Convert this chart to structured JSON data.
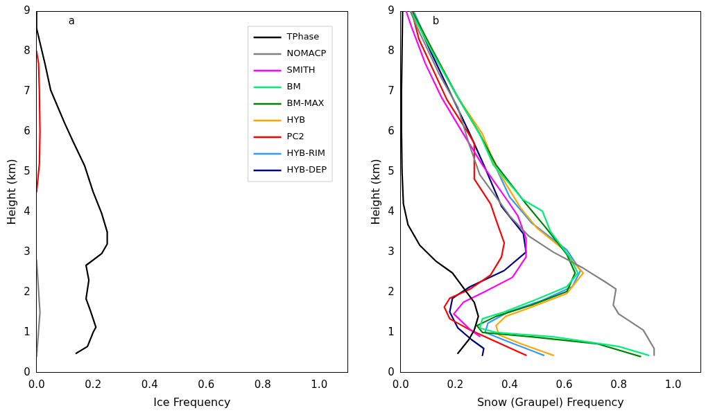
{
  "chart_data": [
    {
      "type": "line",
      "annotations": [
        "a"
      ],
      "xlabel": "Ice Frequency",
      "ylabel": "Height (km)",
      "xlim": [
        0,
        1.1
      ],
      "xticks": [
        {
          "value": 0,
          "label": "0.0"
        },
        {
          "value": 0.2,
          "label": "0.2"
        },
        {
          "value": 0.4,
          "label": "0.4"
        },
        {
          "value": 0.6,
          "label": "0.6"
        },
        {
          "value": 0.8,
          "label": "0.8"
        },
        {
          "value": 1,
          "label": "1.0"
        }
      ],
      "ylim": [
        0,
        9
      ],
      "yticks": [
        0,
        1,
        2,
        3,
        4,
        5,
        6,
        7,
        8,
        9
      ],
      "grid": false,
      "legend": "top right",
      "marker": "none",
      "line_style": "solid",
      "series": [
        {
          "name": "TPhase",
          "color": "#000000",
          "x": [
            0.14,
            0.18,
            0.2,
            0.21,
            0.19,
            0.175,
            0.185,
            0.175,
            0.23,
            0.25,
            0.25,
            0.23,
            0.2,
            0.17,
            0.13,
            0.1,
            0.05,
            0.03,
            0.0,
            0.0
          ],
          "values": [
            0.48,
            0.65,
            1.0,
            1.13,
            1.55,
            1.84,
            2.3,
            2.67,
            2.96,
            3.2,
            3.5,
            3.97,
            4.5,
            5.15,
            5.74,
            6.2,
            7.03,
            7.68,
            8.57,
            9.0
          ]
        },
        {
          "name": "NOMACP",
          "color": "#808080",
          "x": [
            0.0,
            0.012,
            0.0
          ],
          "values": [
            0.4,
            1.5,
            2.8
          ]
        },
        {
          "name": "SMITH",
          "color": "#ff00ff"
        },
        {
          "name": "BM",
          "color": "#00ee77"
        },
        {
          "name": "BM-MAX",
          "color": "#008000"
        },
        {
          "name": "HYB",
          "color": "#ffa500"
        },
        {
          "name": "PC2",
          "color": "#ff0000",
          "x": [
            0.0,
            0.01,
            0.012,
            0.01,
            0.007,
            0.0
          ],
          "values": [
            4.5,
            5.2,
            6.0,
            7.0,
            7.7,
            8.0
          ]
        },
        {
          "name": "HYB-RIM",
          "color": "#3399ff"
        },
        {
          "name": "HYB-DEP",
          "color": "#000080"
        }
      ]
    },
    {
      "type": "line",
      "annotations": [
        "b"
      ],
      "xlabel": "Snow (Graupel) Frequency",
      "ylabel": "Height (km)",
      "xlim": [
        0,
        1.1
      ],
      "xticks": [
        {
          "value": 0,
          "label": "0.0"
        },
        {
          "value": 0.2,
          "label": "0.2"
        },
        {
          "value": 0.4,
          "label": "0.4"
        },
        {
          "value": 0.6,
          "label": "0.6"
        },
        {
          "value": 0.8,
          "label": "0.8"
        },
        {
          "value": 1,
          "label": "1.0"
        }
      ],
      "ylim": [
        0,
        9
      ],
      "yticks": [
        0,
        1,
        2,
        3,
        4,
        5,
        6,
        7,
        8,
        9
      ],
      "grid": false,
      "legend": false,
      "marker": "none",
      "line_style": "solid",
      "series": [
        {
          "color": "#000000",
          "x": [
            0.21,
            0.25,
            0.27,
            0.285,
            0.27,
            0.24,
            0.19,
            0.13,
            0.07,
            0.027,
            0.01,
            0.005,
            0.003,
            0.003,
            0.005,
            0.007
          ],
          "values": [
            0.48,
            0.82,
            1.06,
            1.4,
            1.75,
            2.02,
            2.48,
            2.77,
            3.17,
            3.68,
            4.2,
            5.0,
            6.0,
            7.0,
            8.0,
            9.0
          ]
        },
        {
          "color": "#808080",
          "x": [
            0.93,
            0.93,
            0.89,
            0.8,
            0.78,
            0.79,
            0.75,
            0.67,
            0.56,
            0.47,
            0.4,
            0.35,
            0.29,
            0.25,
            0.21,
            0.14,
            0.06,
            0.035
          ],
          "values": [
            0.43,
            0.6,
            1.06,
            1.46,
            1.68,
            2.08,
            2.26,
            2.6,
            3.0,
            3.4,
            3.9,
            4.37,
            4.93,
            5.71,
            6.6,
            7.45,
            8.6,
            9.0
          ]
        },
        {
          "color": "#ff00ff",
          "x": [
            0.29,
            0.255,
            0.195,
            0.23,
            0.31,
            0.41,
            0.46,
            0.46,
            0.43,
            0.39,
            0.3,
            0.23,
            0.15,
            0.09,
            0.04,
            0.02
          ],
          "values": [
            0.9,
            1.07,
            1.46,
            1.75,
            2.02,
            2.37,
            2.88,
            3.34,
            3.9,
            4.3,
            5.17,
            5.94,
            6.85,
            7.7,
            8.6,
            9.0
          ]
        },
        {
          "color": "#00ee77",
          "x": [
            0.91,
            0.8,
            0.56,
            0.35,
            0.29,
            0.3,
            0.38,
            0.49,
            0.61,
            0.65,
            0.62,
            0.55,
            0.52,
            0.45,
            0.34,
            0.29,
            0.21,
            0.115,
            0.04
          ],
          "values": [
            0.43,
            0.65,
            0.89,
            1.0,
            1.11,
            1.34,
            1.51,
            1.8,
            2.14,
            2.48,
            2.88,
            3.51,
            4.02,
            4.3,
            5.17,
            5.94,
            6.85,
            7.99,
            8.96
          ]
        },
        {
          "color": "#008000",
          "x": [
            0.88,
            0.72,
            0.48,
            0.3,
            0.28,
            0.35,
            0.48,
            0.61,
            0.64,
            0.61,
            0.53,
            0.46,
            0.35,
            0.29,
            0.21,
            0.12,
            0.045
          ],
          "values": [
            0.4,
            0.72,
            0.89,
            1.0,
            1.17,
            1.4,
            1.68,
            2.02,
            2.48,
            2.94,
            3.63,
            4.2,
            5.17,
            5.94,
            6.85,
            7.99,
            8.96
          ]
        },
        {
          "color": "#ffa500",
          "x": [
            0.56,
            0.44,
            0.36,
            0.35,
            0.385,
            0.48,
            0.61,
            0.67,
            0.64,
            0.6,
            0.5,
            0.44,
            0.35,
            0.3,
            0.21,
            0.12,
            0.045
          ],
          "values": [
            0.43,
            0.72,
            0.94,
            1.17,
            1.4,
            1.63,
            1.97,
            2.48,
            2.7,
            3.05,
            3.6,
            4.1,
            5.1,
            5.94,
            6.85,
            7.99,
            8.96
          ]
        },
        {
          "color": "#ff0000",
          "x": [
            0.46,
            0.35,
            0.255,
            0.18,
            0.16,
            0.18,
            0.255,
            0.33,
            0.37,
            0.38,
            0.35,
            0.33,
            0.27,
            0.27,
            0.25,
            0.17,
            0.125,
            0.067,
            0.04
          ],
          "values": [
            0.43,
            0.77,
            1.06,
            1.34,
            1.63,
            1.85,
            2.08,
            2.43,
            2.88,
            3.23,
            3.8,
            4.2,
            4.82,
            5.71,
            5.94,
            6.79,
            7.45,
            8.3,
            9.0
          ]
        },
        {
          "color": "#3399ff",
          "x": [
            0.525,
            0.395,
            0.31,
            0.32,
            0.395,
            0.52,
            0.63,
            0.66,
            0.61,
            0.48,
            0.4,
            0.345,
            0.29,
            0.21,
            0.115,
            0.05
          ],
          "values": [
            0.43,
            0.77,
            1.0,
            1.23,
            1.51,
            1.8,
            2.14,
            2.54,
            3.05,
            3.73,
            4.37,
            5.17,
            5.94,
            6.85,
            7.99,
            8.96
          ]
        },
        {
          "color": "#000080",
          "x": [
            0.3,
            0.305,
            0.26,
            0.21,
            0.18,
            0.19,
            0.255,
            0.38,
            0.46,
            0.45,
            0.37,
            0.305,
            0.25,
            0.19,
            0.11,
            0.047
          ],
          "values": [
            0.43,
            0.6,
            0.82,
            1.11,
            1.51,
            1.85,
            2.14,
            2.54,
            3.0,
            3.46,
            4.14,
            5.17,
            6.0,
            6.85,
            7.99,
            8.96
          ]
        }
      ]
    }
  ]
}
